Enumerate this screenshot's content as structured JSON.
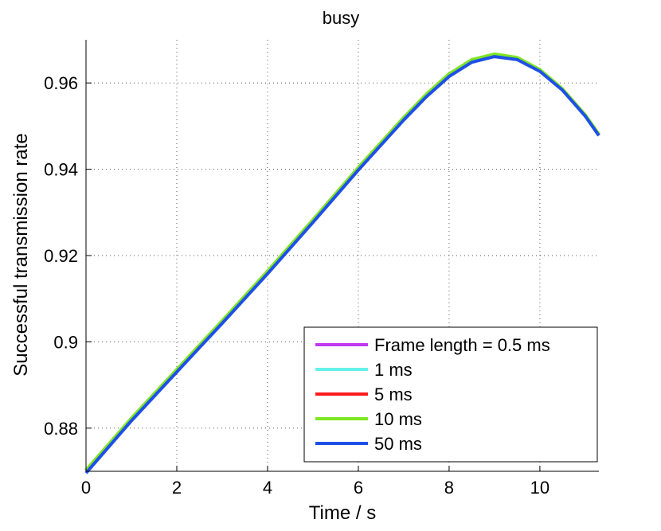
{
  "chart_data": {
    "type": "line",
    "title": "busy",
    "xlabel": "Time / s",
    "ylabel": "Successful transmission rate",
    "xlim": [
      0,
      11.3
    ],
    "ylim": [
      0.87,
      0.97
    ],
    "xticks": [
      0,
      2,
      4,
      6,
      8,
      10
    ],
    "yticks": [
      0.88,
      0.9,
      0.92,
      0.94,
      0.96
    ],
    "x_tick_labels": [
      "0",
      "2",
      "4",
      "6",
      "8",
      "10"
    ],
    "y_tick_labels": [
      "0.88",
      "0.9",
      "0.92",
      "0.94",
      "0.96"
    ],
    "grid": true,
    "legend_position": "bottom-right",
    "series": [
      {
        "name": "Frame length = 0.5 ms",
        "color": "#c03af0",
        "x": [
          0,
          1,
          2,
          3,
          4,
          5,
          6,
          7,
          7.5,
          8,
          8.5,
          9,
          9.5,
          10,
          10.5,
          11,
          11.3
        ],
        "y": [
          0.8702,
          0.8822,
          0.8935,
          0.9048,
          0.9163,
          0.9282,
          0.9403,
          0.9519,
          0.9573,
          0.962,
          0.9653,
          0.9666,
          0.9658,
          0.963,
          0.9585,
          0.9525,
          0.948
        ]
      },
      {
        "name": "1 ms",
        "color": "#66f2ea",
        "x": [
          0,
          1,
          2,
          3,
          4,
          5,
          6,
          7,
          7.5,
          8,
          8.5,
          9,
          9.5,
          10,
          10.5,
          11,
          11.3
        ],
        "y": [
          0.8702,
          0.8822,
          0.8935,
          0.9048,
          0.9163,
          0.9282,
          0.9403,
          0.9519,
          0.9573,
          0.962,
          0.9653,
          0.9666,
          0.9658,
          0.963,
          0.9585,
          0.9525,
          0.948
        ]
      },
      {
        "name": "5 ms",
        "color": "#ff1a1a",
        "x": [
          0,
          1,
          2,
          3,
          4,
          5,
          6,
          7,
          7.5,
          8,
          8.5,
          9,
          9.5,
          10,
          10.5,
          11,
          11.3
        ],
        "y": [
          0.8702,
          0.8822,
          0.8935,
          0.9048,
          0.9163,
          0.9282,
          0.9403,
          0.9519,
          0.9573,
          0.962,
          0.9653,
          0.9666,
          0.9658,
          0.963,
          0.9585,
          0.9525,
          0.948
        ]
      },
      {
        "name": "10 ms",
        "color": "#7ee622",
        "x": [
          0,
          1,
          2,
          3,
          4,
          5,
          6,
          7,
          7.5,
          8,
          8.5,
          9,
          9.5,
          10,
          10.5,
          11,
          11.3
        ],
        "y": [
          0.8703,
          0.8823,
          0.8936,
          0.9049,
          0.9164,
          0.9283,
          0.9404,
          0.952,
          0.9574,
          0.9621,
          0.9654,
          0.9667,
          0.9659,
          0.9631,
          0.9586,
          0.9526,
          0.9481
        ]
      },
      {
        "name": "50 ms",
        "color": "#1e4fe8",
        "x": [
          0,
          1,
          2,
          3,
          4,
          5,
          6,
          7,
          7.5,
          8,
          8.5,
          9,
          9.5,
          10,
          10.5,
          11,
          11.3
        ],
        "y": [
          0.8696,
          0.8817,
          0.893,
          0.9043,
          0.9158,
          0.9277,
          0.9398,
          0.9514,
          0.9568,
          0.9615,
          0.9648,
          0.9661,
          0.9654,
          0.9627,
          0.9583,
          0.9523,
          0.9478
        ]
      }
    ]
  }
}
